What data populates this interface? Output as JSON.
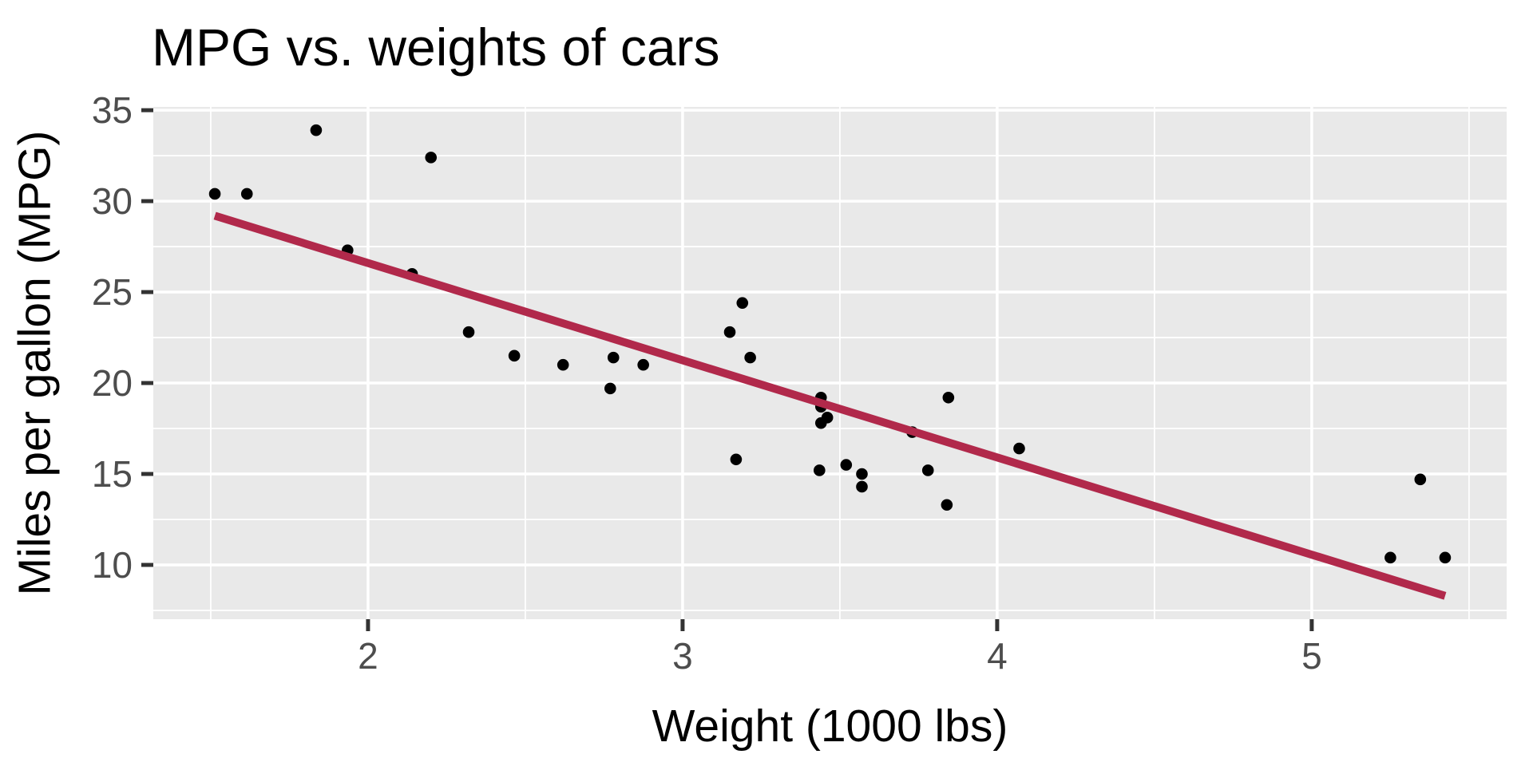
{
  "chart_data": {
    "type": "scatter",
    "title": "MPG vs. weights of cars",
    "xlabel": "Weight (1000 lbs)",
    "ylabel": "Miles per gallon (MPG)",
    "xlim": [
      1.3174,
      5.6196
    ],
    "ylim": [
      7.016,
      35.18
    ],
    "x_ticks": [
      2,
      3,
      4,
      5
    ],
    "y_ticks": [
      10,
      15,
      20,
      25,
      30,
      35
    ],
    "x_minor_ticks": [
      1.5,
      2.5,
      3.5,
      4.5,
      5.5
    ],
    "y_minor_ticks": [
      7.5,
      12.5,
      17.5,
      22.5,
      27.5,
      32.5
    ],
    "grid": true,
    "legend_position": "none",
    "points_xy": [
      [
        2.62,
        21.0
      ],
      [
        2.875,
        21.0
      ],
      [
        2.32,
        22.8
      ],
      [
        3.215,
        21.4
      ],
      [
        3.44,
        18.7
      ],
      [
        3.46,
        18.1
      ],
      [
        3.57,
        14.3
      ],
      [
        3.19,
        24.4
      ],
      [
        3.15,
        22.8
      ],
      [
        3.44,
        19.2
      ],
      [
        3.44,
        17.8
      ],
      [
        4.07,
        16.4
      ],
      [
        3.73,
        17.3
      ],
      [
        3.78,
        15.2
      ],
      [
        5.25,
        10.4
      ],
      [
        5.424,
        10.4
      ],
      [
        5.345,
        14.7
      ],
      [
        2.2,
        32.4
      ],
      [
        1.615,
        30.4
      ],
      [
        1.835,
        33.9
      ],
      [
        2.465,
        21.5
      ],
      [
        3.52,
        15.5
      ],
      [
        3.435,
        15.2
      ],
      [
        3.84,
        13.3
      ],
      [
        3.845,
        19.2
      ],
      [
        1.935,
        27.3
      ],
      [
        2.14,
        26.0
      ],
      [
        1.513,
        30.4
      ],
      [
        3.17,
        15.8
      ],
      [
        2.77,
        19.7
      ],
      [
        3.57,
        15.0
      ],
      [
        2.78,
        21.4
      ]
    ],
    "trend_line": {
      "type": "linear",
      "intercept": 37.285,
      "slope": -5.3445,
      "x_start": 1.513,
      "x_end": 5.424
    },
    "colors": {
      "panel_background": "#E9E9E9",
      "grid_line": "#FFFFFF",
      "point": "#000000",
      "trend_line": "#B1294B",
      "tick_label": "#4D4D4D",
      "tick_mark": "#333333",
      "title_text": "#000000"
    }
  }
}
